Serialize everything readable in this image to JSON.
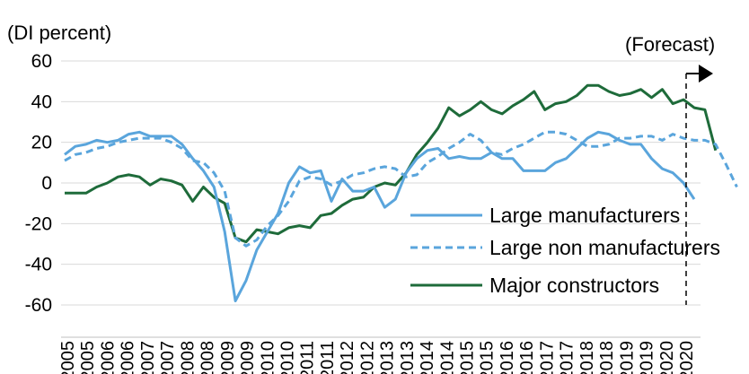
{
  "chart_data": {
    "type": "line",
    "ylabel": "(DI percent)",
    "ylim": [
      -60,
      60
    ],
    "yticks": [
      60,
      40,
      20,
      0,
      -20,
      -40,
      -60
    ],
    "grid": "horizontal",
    "legend_placement": "bottom-right",
    "x_tick_labels": [
      "2005",
      "2005",
      "2006",
      "2006",
      "2007",
      "2007",
      "2008",
      "2008",
      "2009",
      "2009",
      "2010",
      "2010",
      "2011",
      "2011",
      "2012",
      "2012",
      "2013",
      "2013",
      "2014",
      "2014",
      "2015",
      "2015",
      "2016",
      "2016",
      "2017",
      "2017",
      "2018",
      "2018",
      "2019",
      "2019",
      "2020",
      "2020"
    ],
    "annotation": "(Forecast)",
    "x_start": 2005.0,
    "x_step": 0.25,
    "series": [
      {
        "name": "Large manufacturers",
        "color": "#5aa5dc",
        "dash": "solid",
        "values": [
          14,
          18,
          19,
          21,
          20,
          21,
          24,
          25,
          23,
          23,
          23,
          19,
          12,
          6,
          -2,
          -24,
          -58,
          -48,
          -33,
          -24,
          -15,
          0,
          8,
          5,
          6,
          -9,
          2,
          -4,
          -4,
          -2,
          -12,
          -8,
          5,
          12,
          16,
          17,
          12,
          13,
          12,
          12,
          15,
          12,
          12,
          6,
          6,
          6,
          10,
          12,
          17,
          22,
          25,
          24,
          21,
          19,
          19,
          12,
          7,
          5,
          0,
          -8
        ]
      },
      {
        "name": "Large non manufacturers",
        "color": "#5aa5dc",
        "dash": "dashed",
        "values": [
          11,
          14,
          15,
          17,
          18,
          20,
          21,
          22,
          22,
          22,
          20,
          17,
          11,
          10,
          5,
          -4,
          -27,
          -31,
          -28,
          -21,
          -16,
          -9,
          1,
          3,
          2,
          -1,
          1,
          4,
          5,
          7,
          8,
          7,
          3,
          4,
          10,
          13,
          17,
          20,
          24,
          21,
          15,
          14,
          17,
          19,
          22,
          25,
          25,
          24,
          21,
          18,
          18,
          19,
          22,
          22,
          23,
          23,
          21,
          24,
          22,
          21,
          21,
          19,
          9,
          -2
        ]
      },
      {
        "name": "Major constructors",
        "color": "#1e6b3a",
        "dash": "solid",
        "values": [
          -5,
          -5,
          -5,
          -2,
          0,
          3,
          4,
          3,
          -1,
          2,
          1,
          -1,
          -9,
          -2,
          -7,
          -10,
          -27,
          -29,
          -23,
          -24,
          -25,
          -22,
          -21,
          -22,
          -16,
          -15,
          -11,
          -8,
          -7,
          -2,
          0,
          -1,
          5,
          14,
          20,
          27,
          37,
          33,
          36,
          40,
          36,
          34,
          38,
          41,
          45,
          36,
          39,
          40,
          43,
          48,
          48,
          45,
          43,
          44,
          46,
          42,
          46,
          39,
          41,
          37,
          36,
          16
        ]
      }
    ]
  }
}
